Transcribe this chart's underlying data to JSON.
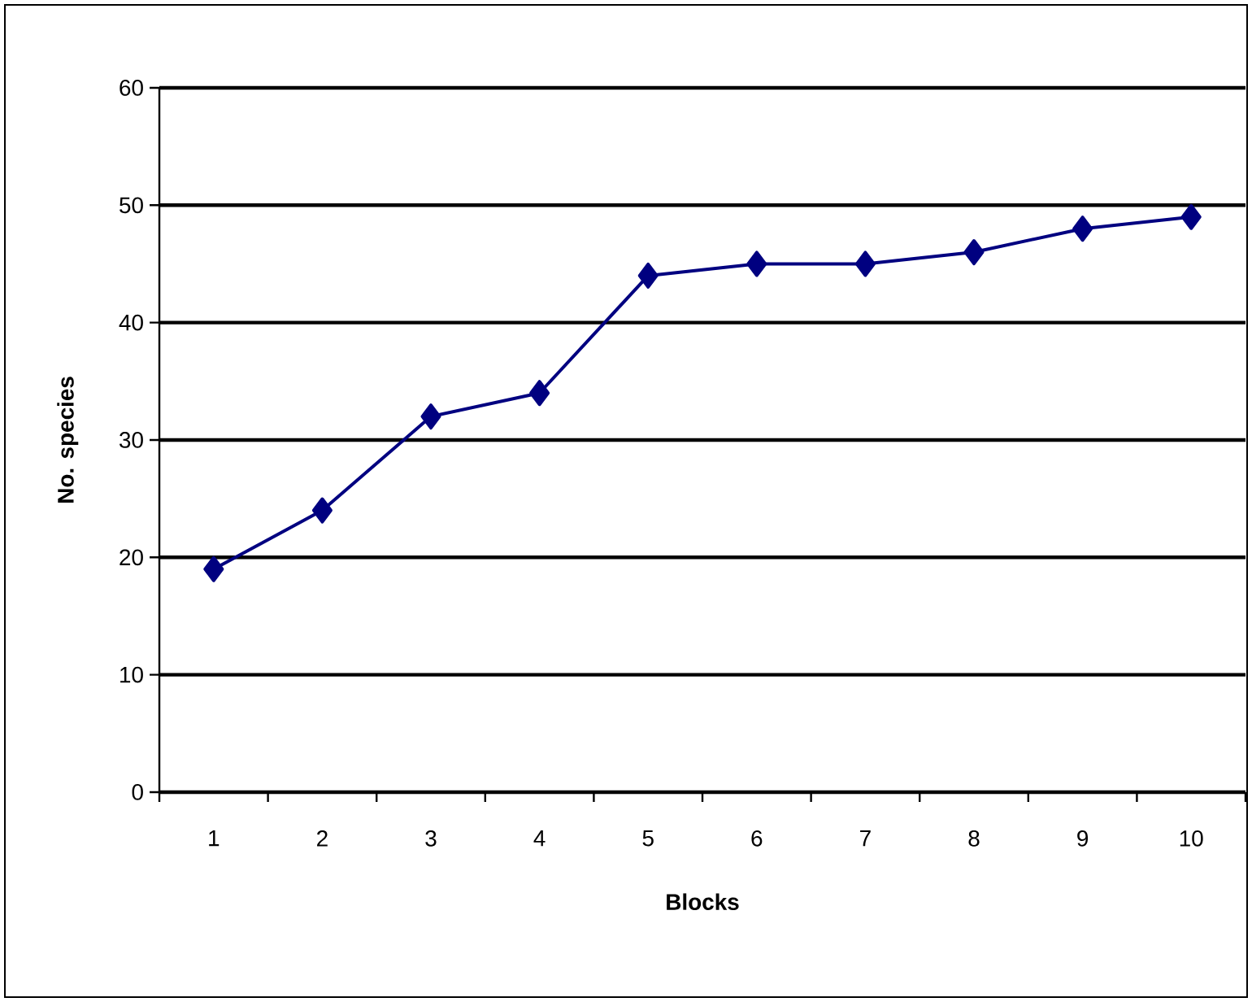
{
  "chart_data": {
    "type": "line",
    "xlabel": "Blocks",
    "ylabel": "No. species",
    "categories": [
      "1",
      "2",
      "3",
      "4",
      "5",
      "6",
      "7",
      "8",
      "9",
      "10"
    ],
    "series": [
      {
        "color": "#000080",
        "values": [
          19,
          24,
          32,
          34,
          44,
          45,
          45,
          46,
          48,
          49
        ]
      }
    ],
    "ylim": [
      0,
      60
    ],
    "yticks": [
      0,
      10,
      20,
      30,
      40,
      50,
      60
    ],
    "grid": "y",
    "marker": "diamond",
    "line_style": "solid"
  }
}
